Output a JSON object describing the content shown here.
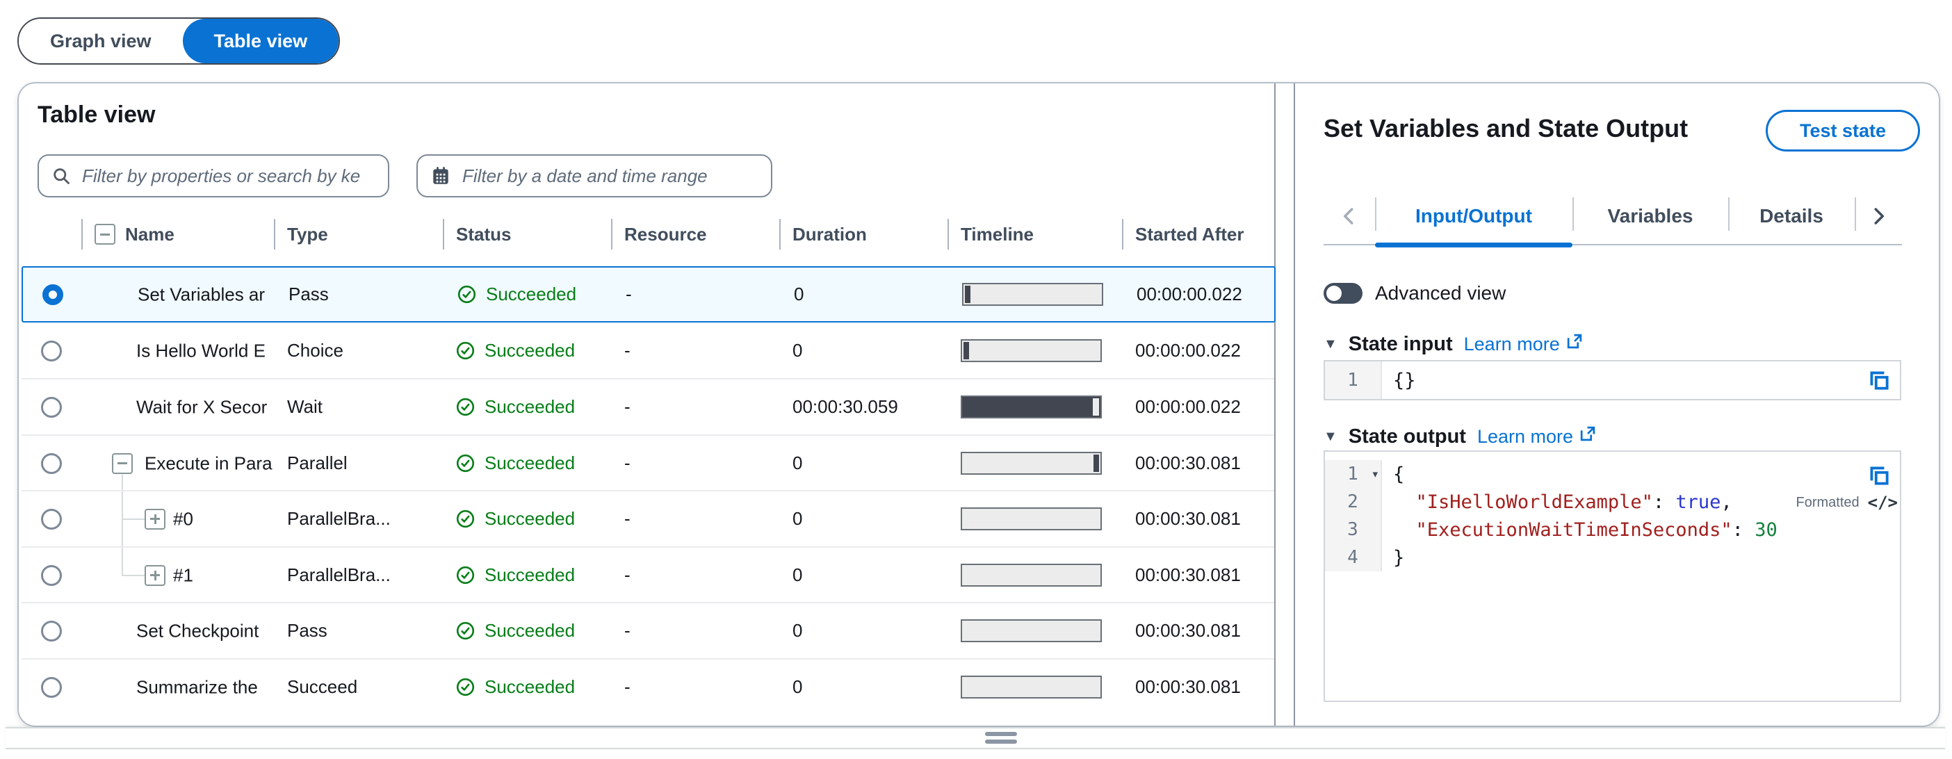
{
  "colors": {
    "accent": "#0972d3",
    "text": "#16191f",
    "secondary": "#414d5c",
    "muted": "#5f6b7a",
    "success": "#077d18",
    "selected-row-bg": "#f1faff",
    "card-border": "#b6bec9",
    "input-border": "#7d8998",
    "hairline": "#e9ebed",
    "splitter": "#8d96a3",
    "bar-border": "#697077",
    "bar-light": "#ececec",
    "bar-dark": "#424650",
    "code-border": "#d1d5da",
    "gutter-bg": "#f4f4f4",
    "code-key": "#a0201e",
    "code-bool": "#2b36cc",
    "code-num": "#15803d"
  },
  "view_toggle": {
    "options": [
      {
        "label": "Graph view",
        "active": false
      },
      {
        "label": "Table view",
        "active": true
      }
    ]
  },
  "table_panel": {
    "title": "Table view",
    "property_filter_placeholder": "Filter by properties or search by ke",
    "date_filter_placeholder": "Filter by a date and time range",
    "columns": [
      "Name",
      "Type",
      "Status",
      "Resource",
      "Duration",
      "Timeline",
      "Started After"
    ],
    "rows": [
      {
        "name": "Set Variables ar",
        "type": "Pass",
        "status": "Succeeded",
        "resource": "-",
        "duration": "0",
        "started_after": "00:00:00.022",
        "selected": true,
        "tree": "none",
        "timeline": {
          "fill": "light",
          "tick": "left"
        }
      },
      {
        "name": "Is Hello World E",
        "type": "Choice",
        "status": "Succeeded",
        "resource": "-",
        "duration": "0",
        "started_after": "00:00:00.022",
        "selected": false,
        "tree": "none",
        "timeline": {
          "fill": "light",
          "tick": "left"
        }
      },
      {
        "name": "Wait for X Secor",
        "type": "Wait",
        "status": "Succeeded",
        "resource": "-",
        "duration": "00:00:30.059",
        "started_after": "00:00:00.022",
        "selected": false,
        "tree": "none",
        "timeline": {
          "fill": "dark",
          "tick": "right-light"
        }
      },
      {
        "name": "Execute in Para",
        "type": "Parallel",
        "status": "Succeeded",
        "resource": "-",
        "duration": "0",
        "started_after": "00:00:30.081",
        "selected": false,
        "tree": "parent",
        "timeline": {
          "fill": "light",
          "tick": "right"
        }
      },
      {
        "name": "#0",
        "type": "ParallelBra...",
        "status": "Succeeded",
        "resource": "-",
        "duration": "0",
        "started_after": "00:00:30.081",
        "selected": false,
        "tree": "child",
        "timeline": {
          "fill": "light",
          "tick": "none"
        }
      },
      {
        "name": "#1",
        "type": "ParallelBra...",
        "status": "Succeeded",
        "resource": "-",
        "duration": "0",
        "started_after": "00:00:30.081",
        "selected": false,
        "tree": "child-last",
        "timeline": {
          "fill": "light",
          "tick": "none"
        }
      },
      {
        "name": "Set Checkpoint",
        "type": "Pass",
        "status": "Succeeded",
        "resource": "-",
        "duration": "0",
        "started_after": "00:00:30.081",
        "selected": false,
        "tree": "none",
        "timeline": {
          "fill": "light",
          "tick": "none"
        }
      },
      {
        "name": "Summarize the",
        "type": "Succeed",
        "status": "Succeeded",
        "resource": "-",
        "duration": "0",
        "started_after": "00:00:30.081",
        "selected": false,
        "tree": "none",
        "timeline": {
          "fill": "light",
          "tick": "none"
        }
      }
    ]
  },
  "details_panel": {
    "title": "Set Variables and State Output",
    "test_state_label": "Test state",
    "tabs": [
      {
        "label": "Input/Output",
        "active": true
      },
      {
        "label": "Variables",
        "active": false
      },
      {
        "label": "Details",
        "active": false
      }
    ],
    "advanced_view_label": "Advanced view",
    "state_input": {
      "label": "State input",
      "learn_more": "Learn more",
      "lines": [
        {
          "num": "1",
          "fold": false,
          "tokens": [
            {
              "text": "{}",
              "type": "plain"
            }
          ]
        }
      ]
    },
    "state_output": {
      "label": "State output",
      "learn_more": "Learn more",
      "formatted_badge": "Formatted",
      "code_icon": "</>",
      "lines": [
        {
          "num": "1",
          "fold": true,
          "tokens": [
            {
              "text": "{",
              "type": "plain"
            }
          ]
        },
        {
          "num": "2",
          "fold": false,
          "tokens": [
            {
              "text": "  ",
              "type": "plain"
            },
            {
              "text": "\"IsHelloWorldExample\"",
              "type": "key"
            },
            {
              "text": ": ",
              "type": "plain"
            },
            {
              "text": "true",
              "type": "bool"
            },
            {
              "text": ",",
              "type": "plain"
            }
          ]
        },
        {
          "num": "3",
          "fold": false,
          "tokens": [
            {
              "text": "  ",
              "type": "plain"
            },
            {
              "text": "\"ExecutionWaitTimeInSeconds\"",
              "type": "key"
            },
            {
              "text": ": ",
              "type": "plain"
            },
            {
              "text": "30",
              "type": "num"
            }
          ]
        },
        {
          "num": "4",
          "fold": false,
          "tokens": [
            {
              "text": "}",
              "type": "plain"
            }
          ]
        }
      ]
    }
  }
}
